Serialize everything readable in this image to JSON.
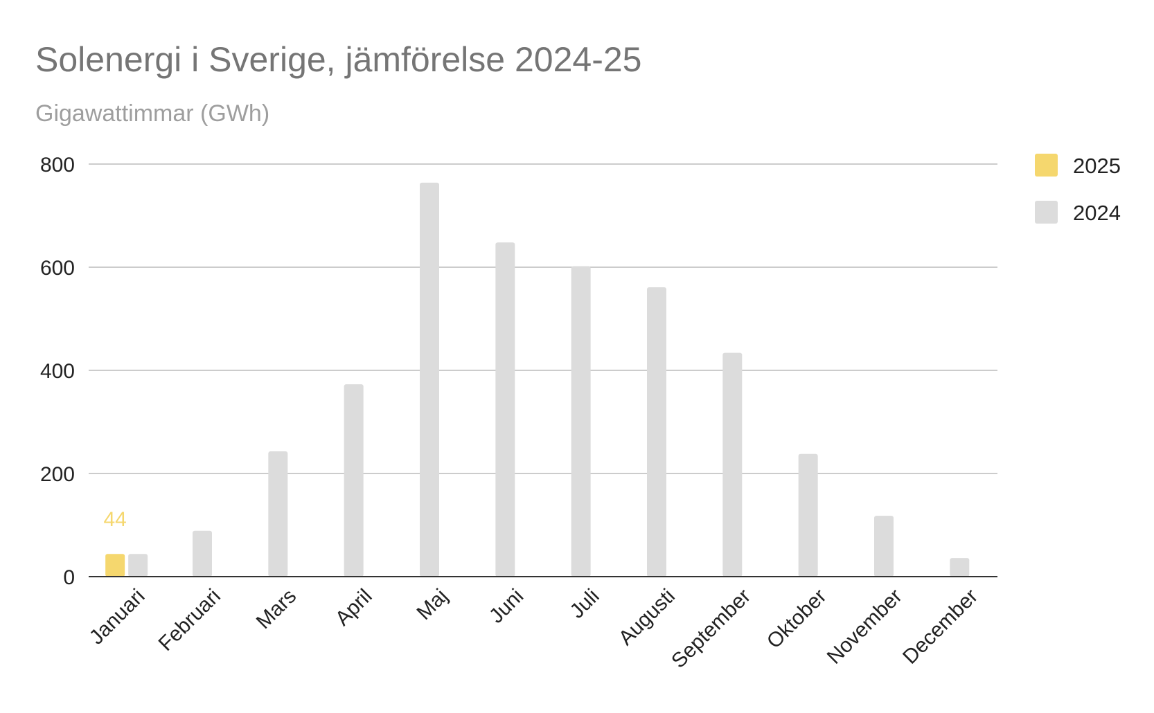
{
  "chart_data": {
    "type": "bar",
    "title": "Solenergi i Sverige, jämförelse 2024-25",
    "subtitle": "Gigawattimmar (GWh)",
    "xlabel": "",
    "ylabel": "",
    "ylim": [
      0,
      800
    ],
    "yticks": [
      0,
      200,
      400,
      600,
      800
    ],
    "grid": true,
    "legend_position": "right",
    "categories": [
      "Januari",
      "Februari",
      "Mars",
      "April",
      "Maj",
      "Juni",
      "Juli",
      "Augusti",
      "September",
      "Oktober",
      "November",
      "December"
    ],
    "series": [
      {
        "name": "2025",
        "color": "#f5d76e",
        "values": [
          44,
          null,
          null,
          null,
          null,
          null,
          null,
          null,
          null,
          null,
          null,
          null
        ],
        "data_labels": [
          "44",
          null,
          null,
          null,
          null,
          null,
          null,
          null,
          null,
          null,
          null,
          null
        ]
      },
      {
        "name": "2024",
        "color": "#dcdcdc",
        "values": [
          44,
          89,
          243,
          373,
          764,
          648,
          602,
          561,
          434,
          238,
          118,
          36
        ]
      }
    ]
  },
  "colors": {
    "title": "#757575",
    "subtitle": "#9e9e9e",
    "grid": "#cccccc",
    "axis": "#333333",
    "tick_text": "#222222"
  }
}
